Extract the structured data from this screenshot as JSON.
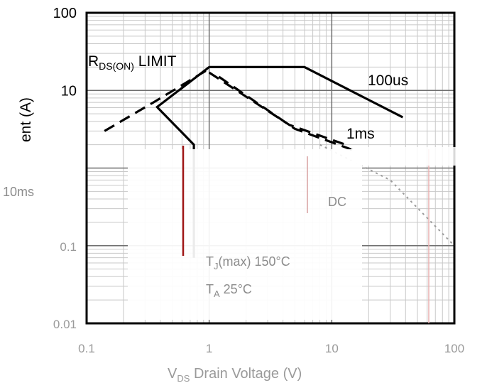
{
  "chart_data": {
    "type": "line",
    "title": "",
    "xlabel": "VDS Drain Voltage (V)",
    "xlabel_main": "V",
    "xlabel_sub": "DS",
    "xlabel_rest": " Drain Voltage (V)",
    "ylabel": "ent (A)",
    "x_scale": "log",
    "y_scale": "log",
    "xlim": [
      0.1,
      100
    ],
    "ylim": [
      0.01,
      100
    ],
    "grid": true,
    "y_ticks": [
      {
        "value": 100,
        "label": "100"
      },
      {
        "value": 10,
        "label": "10"
      },
      {
        "value": 0.1,
        "label": "0.1"
      },
      {
        "value": 0.01,
        "label": "0.01"
      }
    ],
    "x_ticks": [
      {
        "value": 0.1,
        "label": "0.1"
      },
      {
        "value": 1,
        "label": "1"
      },
      {
        "value": 10,
        "label": "10"
      },
      {
        "value": 100,
        "label": "100"
      }
    ],
    "series": [
      {
        "name": "RDS(ON) LIMIT",
        "style": "dashed",
        "x": [
          0.14,
          0.35,
          1.0
        ],
        "y": [
          3.0,
          7.0,
          19.0
        ]
      },
      {
        "name": "100us",
        "style": "solid",
        "x": [
          0.37,
          1.0,
          6.0,
          38.0
        ],
        "y": [
          6.0,
          20.0,
          20.0,
          4.5
        ]
      },
      {
        "name": "1ms",
        "style": "dashed",
        "x": [
          1.0,
          4.5,
          13.0
        ],
        "y": [
          17.0,
          3.6,
          2.0
        ]
      },
      {
        "name": "1ms",
        "style": "dashed",
        "x": [
          1.2,
          5.0,
          15.0
        ],
        "y": [
          15.0,
          3.2,
          1.7
        ]
      },
      {
        "name": "10ms",
        "style": "solid",
        "x": [
          0.38,
          0.75,
          0.75
        ],
        "y": [
          6.0,
          2.0,
          0.07
        ]
      },
      {
        "name": "DC",
        "style": "dotted",
        "x": [
          8.0,
          30.0,
          100.0
        ],
        "y": [
          2.0,
          0.7,
          0.1
        ]
      }
    ],
    "annotations": {
      "rds_main": "R",
      "rds_sub": "DS(ON)",
      "rds_rest": " LIMIT",
      "label_100us": "100us",
      "label_1ms": "1ms",
      "label_10ms": "10ms",
      "label_dc": "DC",
      "tj_main": "T",
      "tj_sub": "J",
      "tj_rest": "(max) 150°C",
      "ta_main": "T",
      "ta_sub": "A",
      "ta_rest": " 25°C"
    }
  }
}
